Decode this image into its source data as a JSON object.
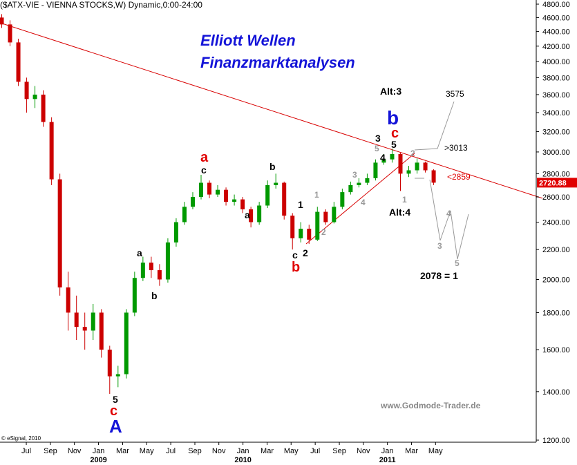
{
  "chart_data": {
    "type": "candlestick",
    "header": "($ATX-VIE - VIENNA STOCKS,W) Dynamic,0:00-24:00",
    "log_scale": true,
    "up_color": "#009900",
    "down_color": "#cc0000",
    "xlim": [
      2008.318,
      2012.03
    ],
    "ylim": [
      1200,
      4800
    ],
    "xticks": [
      {
        "value": 2008.5,
        "label": "Jul"
      },
      {
        "value": 2008.667,
        "label": "Sep"
      },
      {
        "value": 2008.833,
        "label": "Nov"
      },
      {
        "value": 2009.0,
        "label": "Jan"
      },
      {
        "value": 2009.167,
        "label": "Mar"
      },
      {
        "value": 2009.333,
        "label": "May"
      },
      {
        "value": 2009.5,
        "label": "Jul"
      },
      {
        "value": 2009.667,
        "label": "Sep"
      },
      {
        "value": 2009.833,
        "label": "Nov"
      },
      {
        "value": 2010.0,
        "label": "Jan"
      },
      {
        "value": 2010.167,
        "label": "Mar"
      },
      {
        "value": 2010.333,
        "label": "May"
      },
      {
        "value": 2010.5,
        "label": "Jul"
      },
      {
        "value": 2010.667,
        "label": "Sep"
      },
      {
        "value": 2010.833,
        "label": "Nov"
      },
      {
        "value": 2011.0,
        "label": "Jan"
      },
      {
        "value": 2011.167,
        "label": "Mar"
      },
      {
        "value": 2011.333,
        "label": "May"
      }
    ],
    "year_ticks": [
      2009,
      2010,
      2011
    ],
    "yticks": [
      {
        "value": 1200,
        "label": "1200.00"
      },
      {
        "value": 1400,
        "label": "1400.00"
      },
      {
        "value": 1600,
        "label": "1600.00"
      },
      {
        "value": 1800,
        "label": "1800.00"
      },
      {
        "value": 2000,
        "label": "2000.00"
      },
      {
        "value": 2200,
        "label": "2200.00"
      },
      {
        "value": 2400,
        "label": "2400.00"
      },
      {
        "value": 2600,
        "label": "2600.00"
      },
      {
        "value": 2800,
        "label": "2800.00"
      },
      {
        "value": 3000,
        "label": "3000.00"
      },
      {
        "value": 3200,
        "label": "3200.00"
      },
      {
        "value": 3400,
        "label": "3400.00"
      },
      {
        "value": 3600,
        "label": "3600.00"
      },
      {
        "value": 3800,
        "label": "3800.00"
      },
      {
        "value": 4000,
        "label": "4000.00"
      },
      {
        "value": 4200,
        "label": "4200.00"
      },
      {
        "value": 4400,
        "label": "4400.00"
      },
      {
        "value": 4600,
        "label": "4600.00"
      },
      {
        "value": 4800,
        "label": "4800.00"
      }
    ],
    "candles": {
      "x": [
        2008.33,
        2008.3875,
        2008.445,
        2008.5025,
        2008.56,
        2008.6175,
        2008.675,
        2008.7325,
        2008.79,
        2008.8475,
        2008.905,
        2008.9625,
        2009.02,
        2009.0775,
        2009.135,
        2009.1925,
        2009.25,
        2009.3075,
        2009.365,
        2009.4225,
        2009.48,
        2009.5375,
        2009.595,
        2009.6525,
        2009.71,
        2009.7675,
        2009.825,
        2009.8825,
        2009.94,
        2009.9975,
        2010.055,
        2010.1125,
        2010.17,
        2010.2275,
        2010.285,
        2010.3425,
        2010.4,
        2010.4575,
        2010.515,
        2010.5725,
        2010.63,
        2010.6875,
        2010.745,
        2010.8025,
        2010.86,
        2010.9175,
        2010.975,
        2011.0325,
        2011.09,
        2011.1475,
        2011.205,
        2011.2625,
        2011.32
      ],
      "open": [
        4600,
        4500,
        4250,
        3750,
        3550,
        3600,
        3300,
        2750,
        1950,
        1800,
        1720,
        1700,
        1800,
        1600,
        1470,
        1480,
        1800,
        2010,
        2110,
        2060,
        2000,
        2250,
        2400,
        2520,
        2600,
        2720,
        2620,
        2660,
        2560,
        2580,
        2500,
        2400,
        2530,
        2700,
        2720,
        2450,
        2280,
        2350,
        2270,
        2480,
        2400,
        2520,
        2640,
        2700,
        2720,
        2760,
        2900,
        2930,
        2980,
        2800,
        2830,
        2900,
        2830
      ],
      "high": [
        4650,
        4560,
        4300,
        3800,
        3700,
        3650,
        3350,
        2800,
        2050,
        1900,
        1800,
        1850,
        1820,
        1620,
        1520,
        1820,
        2050,
        2150,
        2150,
        2100,
        2280,
        2430,
        2560,
        2640,
        2790,
        2740,
        2700,
        2680,
        2620,
        2600,
        2520,
        2560,
        2740,
        2800,
        2730,
        2470,
        2400,
        2380,
        2520,
        2500,
        2560,
        2670,
        2730,
        2760,
        2800,
        2930,
        2980,
        3030,
        2990,
        2870,
        2940,
        2910,
        2840
      ],
      "low": [
        4450,
        4200,
        3700,
        3400,
        3450,
        3250,
        2700,
        1900,
        1700,
        1650,
        1600,
        1650,
        1560,
        1390,
        1420,
        1460,
        1780,
        1990,
        2010,
        1960,
        1980,
        2220,
        2380,
        2500,
        2580,
        2590,
        2600,
        2530,
        2530,
        2470,
        2360,
        2380,
        2510,
        2670,
        2420,
        2200,
        2250,
        2240,
        2260,
        2380,
        2390,
        2500,
        2620,
        2680,
        2700,
        2740,
        2880,
        2900,
        2650,
        2770,
        2800,
        2810,
        2700
      ],
      "close": [
        4500,
        4250,
        3750,
        3550,
        3600,
        3300,
        2750,
        1950,
        1800,
        1720,
        1700,
        1800,
        1600,
        1470,
        1480,
        1800,
        2010,
        2110,
        2060,
        2000,
        2250,
        2400,
        2520,
        2600,
        2720,
        2620,
        2660,
        2560,
        2580,
        2500,
        2400,
        2530,
        2700,
        2720,
        2450,
        2280,
        2350,
        2270,
        2480,
        2400,
        2520,
        2640,
        2700,
        2720,
        2760,
        2900,
        2930,
        2980,
        2800,
        2830,
        2900,
        2830,
        2720.88
      ]
    },
    "annotations": [
      "Elliott Wellen",
      "Finanzmarktanalysen",
      "Alt:3",
      "3575",
      "b",
      "c",
      "3",
      "5",
      "5",
      "2",
      ">3013",
      "4",
      "<2859",
      "1",
      "Alt:4",
      "4",
      "3",
      "5",
      "2078 = 1",
      "a",
      "c",
      "b",
      "a",
      "1",
      "1",
      "3",
      "4",
      "2",
      "2",
      "c",
      "b",
      "a",
      "b",
      "5",
      "c",
      "A",
      "www.Godmode-Trader.de",
      "© eSignal, 2010"
    ]
  }
}
